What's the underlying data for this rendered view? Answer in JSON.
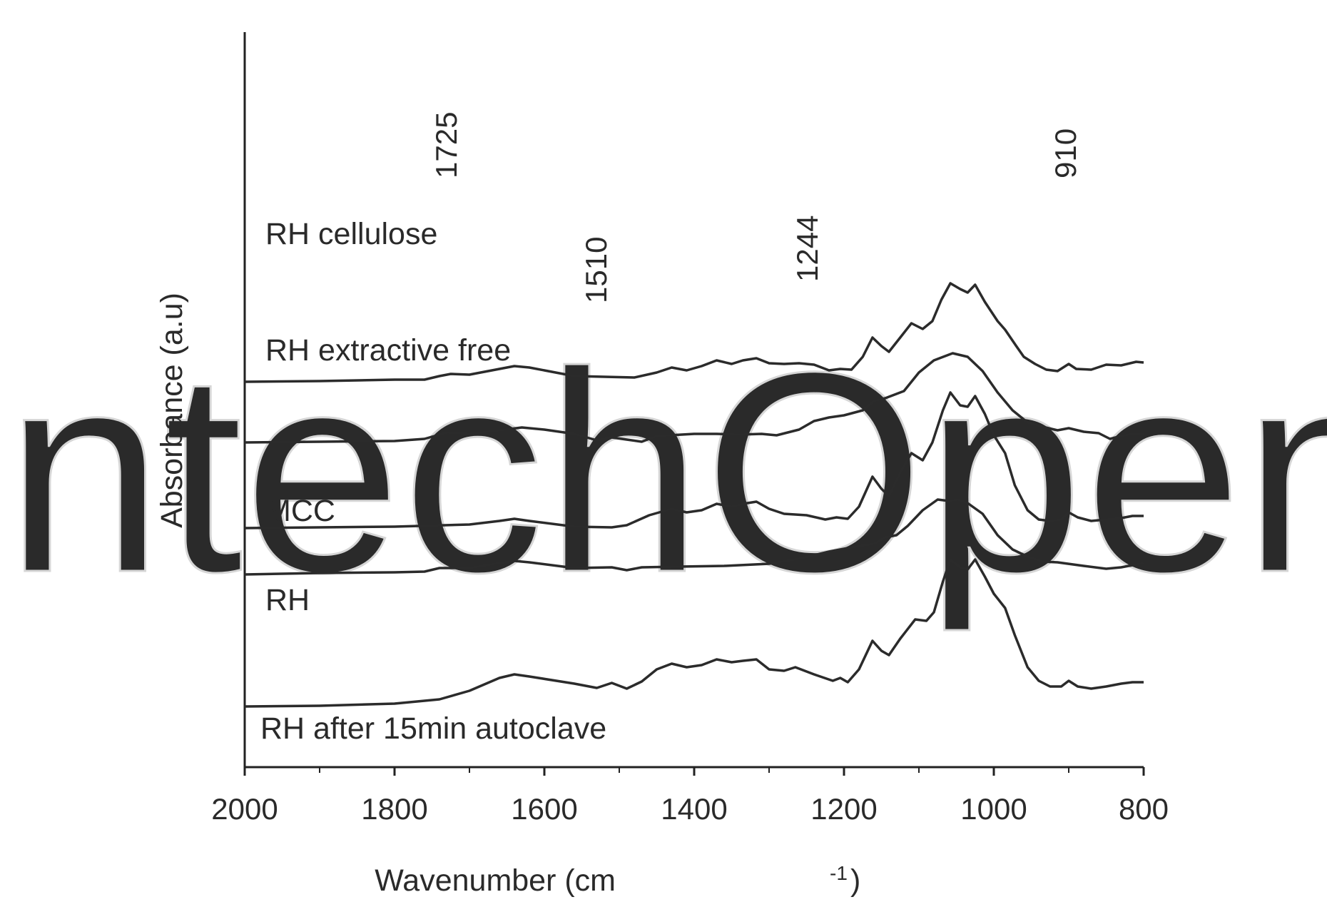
{
  "chart_data": {
    "type": "line",
    "xlabel": "Wavenumber (cm",
    "xlabel_sup": "-1",
    "xlabel_close": ")",
    "ylabel": "Absorbance (a.u)",
    "xlim": [
      2000,
      800
    ],
    "x_reversed": true,
    "x_ticks": [
      "2000",
      "1800",
      "1600",
      "1400",
      "1200",
      "1000",
      "800"
    ],
    "y_ticks_shown": false,
    "grid": false,
    "legend": "none (labels under each trace)",
    "series": [
      {
        "name": "RH cellulose",
        "baseline": 4.55,
        "points": [
          [
            2000,
            0.0
          ],
          [
            1900,
            0.01
          ],
          [
            1800,
            0.03
          ],
          [
            1760,
            0.03
          ],
          [
            1740,
            0.08
          ],
          [
            1725,
            0.11
          ],
          [
            1700,
            0.1
          ],
          [
            1660,
            0.18
          ],
          [
            1640,
            0.22
          ],
          [
            1620,
            0.2
          ],
          [
            1560,
            0.08
          ],
          [
            1520,
            0.07
          ],
          [
            1480,
            0.06
          ],
          [
            1450,
            0.13
          ],
          [
            1430,
            0.2
          ],
          [
            1410,
            0.16
          ],
          [
            1390,
            0.22
          ],
          [
            1370,
            0.3
          ],
          [
            1350,
            0.25
          ],
          [
            1335,
            0.3
          ],
          [
            1317,
            0.33
          ],
          [
            1300,
            0.26
          ],
          [
            1280,
            0.25
          ],
          [
            1260,
            0.26
          ],
          [
            1240,
            0.24
          ],
          [
            1220,
            0.16
          ],
          [
            1205,
            0.18
          ],
          [
            1190,
            0.17
          ],
          [
            1175,
            0.35
          ],
          [
            1162,
            0.62
          ],
          [
            1150,
            0.5
          ],
          [
            1140,
            0.42
          ],
          [
            1125,
            0.62
          ],
          [
            1110,
            0.82
          ],
          [
            1095,
            0.74
          ],
          [
            1082,
            0.85
          ],
          [
            1070,
            1.15
          ],
          [
            1058,
            1.38
          ],
          [
            1045,
            1.3
          ],
          [
            1035,
            1.25
          ],
          [
            1025,
            1.36
          ],
          [
            1012,
            1.12
          ],
          [
            995,
            0.85
          ],
          [
            985,
            0.73
          ],
          [
            970,
            0.5
          ],
          [
            960,
            0.35
          ],
          [
            945,
            0.25
          ],
          [
            930,
            0.17
          ],
          [
            915,
            0.15
          ],
          [
            900,
            0.25
          ],
          [
            890,
            0.18
          ],
          [
            870,
            0.17
          ],
          [
            850,
            0.24
          ],
          [
            830,
            0.23
          ],
          [
            810,
            0.28
          ],
          [
            800,
            0.27
          ]
        ]
      },
      {
        "name": "RH extractive free",
        "baseline": 3.7,
        "points": [
          [
            2000,
            0.0
          ],
          [
            1900,
            0.01
          ],
          [
            1800,
            0.02
          ],
          [
            1760,
            0.05
          ],
          [
            1730,
            0.14
          ],
          [
            1700,
            0.12
          ],
          [
            1660,
            0.17
          ],
          [
            1630,
            0.21
          ],
          [
            1600,
            0.18
          ],
          [
            1560,
            0.12
          ],
          [
            1530,
            0.03
          ],
          [
            1510,
            0.07
          ],
          [
            1490,
            0.04
          ],
          [
            1470,
            0.01
          ],
          [
            1450,
            0.09
          ],
          [
            1400,
            0.12
          ],
          [
            1370,
            0.12
          ],
          [
            1340,
            0.11
          ],
          [
            1310,
            0.12
          ],
          [
            1290,
            0.1
          ],
          [
            1260,
            0.18
          ],
          [
            1240,
            0.3
          ],
          [
            1220,
            0.35
          ],
          [
            1200,
            0.38
          ],
          [
            1175,
            0.45
          ],
          [
            1160,
            0.58
          ],
          [
            1145,
            0.62
          ],
          [
            1120,
            0.72
          ],
          [
            1100,
            0.98
          ],
          [
            1080,
            1.15
          ],
          [
            1055,
            1.25
          ],
          [
            1035,
            1.2
          ],
          [
            1015,
            1.0
          ],
          [
            995,
            0.7
          ],
          [
            975,
            0.45
          ],
          [
            955,
            0.28
          ],
          [
            935,
            0.22
          ],
          [
            915,
            0.17
          ],
          [
            900,
            0.2
          ],
          [
            880,
            0.15
          ],
          [
            860,
            0.13
          ],
          [
            845,
            0.05
          ],
          [
            830,
            0.09
          ],
          [
            815,
            0.12
          ],
          [
            800,
            0.12
          ]
        ]
      },
      {
        "name": "MCC",
        "baseline": 2.5,
        "points": [
          [
            2000,
            0.0
          ],
          [
            1900,
            0.01
          ],
          [
            1800,
            0.02
          ],
          [
            1700,
            0.05
          ],
          [
            1660,
            0.1
          ],
          [
            1640,
            0.13
          ],
          [
            1620,
            0.1
          ],
          [
            1560,
            0.02
          ],
          [
            1510,
            0.01
          ],
          [
            1490,
            0.04
          ],
          [
            1460,
            0.18
          ],
          [
            1430,
            0.27
          ],
          [
            1410,
            0.22
          ],
          [
            1390,
            0.25
          ],
          [
            1370,
            0.34
          ],
          [
            1350,
            0.3
          ],
          [
            1335,
            0.34
          ],
          [
            1317,
            0.37
          ],
          [
            1300,
            0.27
          ],
          [
            1280,
            0.2
          ],
          [
            1250,
            0.18
          ],
          [
            1225,
            0.12
          ],
          [
            1210,
            0.15
          ],
          [
            1195,
            0.13
          ],
          [
            1180,
            0.3
          ],
          [
            1162,
            0.72
          ],
          [
            1150,
            0.55
          ],
          [
            1140,
            0.45
          ],
          [
            1125,
            0.78
          ],
          [
            1110,
            1.05
          ],
          [
            1095,
            0.95
          ],
          [
            1082,
            1.2
          ],
          [
            1068,
            1.65
          ],
          [
            1058,
            1.9
          ],
          [
            1045,
            1.72
          ],
          [
            1035,
            1.7
          ],
          [
            1025,
            1.85
          ],
          [
            1012,
            1.6
          ],
          [
            1000,
            1.3
          ],
          [
            985,
            1.05
          ],
          [
            972,
            0.6
          ],
          [
            955,
            0.25
          ],
          [
            940,
            0.12
          ],
          [
            925,
            0.1
          ],
          [
            910,
            0.12
          ],
          [
            900,
            0.22
          ],
          [
            888,
            0.15
          ],
          [
            870,
            0.1
          ],
          [
            850,
            0.12
          ],
          [
            830,
            0.14
          ],
          [
            815,
            0.17
          ],
          [
            800,
            0.17
          ]
        ]
      },
      {
        "name": "RH",
        "baseline": 1.85,
        "points": [
          [
            2000,
            0.0
          ],
          [
            1900,
            0.02
          ],
          [
            1800,
            0.03
          ],
          [
            1760,
            0.04
          ],
          [
            1740,
            0.09
          ],
          [
            1700,
            0.09
          ],
          [
            1660,
            0.16
          ],
          [
            1640,
            0.19
          ],
          [
            1620,
            0.17
          ],
          [
            1560,
            0.09
          ],
          [
            1510,
            0.1
          ],
          [
            1490,
            0.06
          ],
          [
            1470,
            0.1
          ],
          [
            1420,
            0.11
          ],
          [
            1360,
            0.12
          ],
          [
            1300,
            0.15
          ],
          [
            1260,
            0.22
          ],
          [
            1220,
            0.32
          ],
          [
            1190,
            0.38
          ],
          [
            1160,
            0.43
          ],
          [
            1145,
            0.52
          ],
          [
            1130,
            0.55
          ],
          [
            1115,
            0.68
          ],
          [
            1095,
            0.9
          ],
          [
            1075,
            1.05
          ],
          [
            1060,
            1.03
          ],
          [
            1048,
            1.05
          ],
          [
            1035,
            1.0
          ],
          [
            1015,
            0.85
          ],
          [
            995,
            0.55
          ],
          [
            975,
            0.35
          ],
          [
            955,
            0.25
          ],
          [
            935,
            0.18
          ],
          [
            915,
            0.17
          ],
          [
            880,
            0.12
          ],
          [
            850,
            0.08
          ],
          [
            830,
            0.1
          ],
          [
            815,
            0.13
          ],
          [
            800,
            0.16
          ]
        ]
      },
      {
        "name": "RH after 15min autoclave",
        "baseline": 0.0,
        "points": [
          [
            2000,
            0.0
          ],
          [
            1900,
            0.01
          ],
          [
            1800,
            0.04
          ],
          [
            1740,
            0.1
          ],
          [
            1700,
            0.22
          ],
          [
            1660,
            0.4
          ],
          [
            1640,
            0.45
          ],
          [
            1620,
            0.42
          ],
          [
            1560,
            0.32
          ],
          [
            1530,
            0.26
          ],
          [
            1510,
            0.33
          ],
          [
            1490,
            0.25
          ],
          [
            1470,
            0.35
          ],
          [
            1450,
            0.52
          ],
          [
            1430,
            0.6
          ],
          [
            1410,
            0.55
          ],
          [
            1390,
            0.58
          ],
          [
            1370,
            0.66
          ],
          [
            1350,
            0.62
          ],
          [
            1335,
            0.64
          ],
          [
            1317,
            0.66
          ],
          [
            1300,
            0.52
          ],
          [
            1280,
            0.5
          ],
          [
            1265,
            0.55
          ],
          [
            1240,
            0.45
          ],
          [
            1215,
            0.36
          ],
          [
            1205,
            0.4
          ],
          [
            1195,
            0.34
          ],
          [
            1180,
            0.52
          ],
          [
            1162,
            0.92
          ],
          [
            1150,
            0.78
          ],
          [
            1140,
            0.72
          ],
          [
            1125,
            0.95
          ],
          [
            1105,
            1.22
          ],
          [
            1090,
            1.2
          ],
          [
            1080,
            1.32
          ],
          [
            1068,
            1.75
          ],
          [
            1058,
            2.06
          ],
          [
            1045,
            1.95
          ],
          [
            1035,
            1.92
          ],
          [
            1025,
            2.06
          ],
          [
            1012,
            1.82
          ],
          [
            1000,
            1.58
          ],
          [
            985,
            1.38
          ],
          [
            972,
            1.0
          ],
          [
            955,
            0.55
          ],
          [
            940,
            0.36
          ],
          [
            925,
            0.28
          ],
          [
            910,
            0.28
          ],
          [
            900,
            0.36
          ],
          [
            888,
            0.28
          ],
          [
            870,
            0.25
          ],
          [
            850,
            0.28
          ],
          [
            830,
            0.32
          ],
          [
            815,
            0.34
          ],
          [
            800,
            0.34
          ]
        ]
      }
    ],
    "annotations": [
      "1725",
      "910",
      "1510",
      "1244"
    ]
  },
  "watermark": {
    "text": "IntechOpen"
  }
}
